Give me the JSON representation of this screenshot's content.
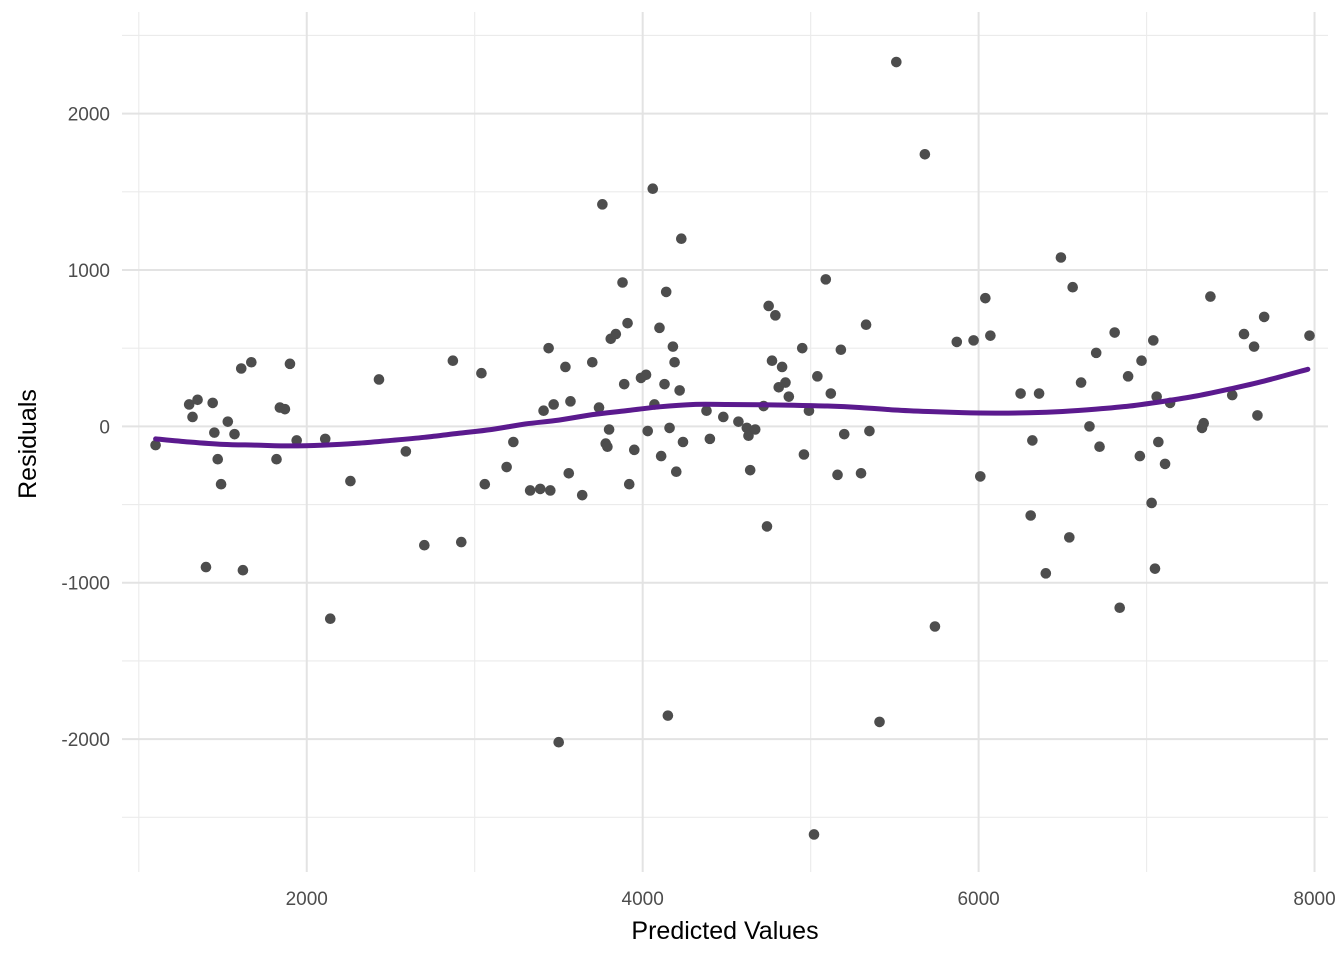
{
  "chart_data": {
    "type": "scatter",
    "title": "",
    "xlabel": "Predicted Values",
    "ylabel": "Residuals",
    "xlim": [
      900,
      8080
    ],
    "ylim": [
      -2850,
      2650
    ],
    "x_ticks": [
      2000,
      4000,
      6000,
      8000
    ],
    "x_tick_labels": [
      "2000",
      "4000",
      "6000",
      "8000"
    ],
    "y_ticks": [
      -2000,
      -1000,
      0,
      1000,
      2000
    ],
    "y_tick_labels": [
      "-2000",
      "-1000",
      "0",
      "1000",
      "2000"
    ],
    "grid": true,
    "legend": "none",
    "point_color": "#4d4d4d",
    "smooth_color": "#5b1a8e",
    "points": [
      [
        1100,
        -120
      ],
      [
        1300,
        140
      ],
      [
        1320,
        60
      ],
      [
        1350,
        170
      ],
      [
        1400,
        -900
      ],
      [
        1440,
        150
      ],
      [
        1450,
        -40
      ],
      [
        1470,
        -210
      ],
      [
        1490,
        -370
      ],
      [
        1530,
        30
      ],
      [
        1570,
        -50
      ],
      [
        1610,
        370
      ],
      [
        1620,
        -920
      ],
      [
        1670,
        410
      ],
      [
        1820,
        -210
      ],
      [
        1840,
        120
      ],
      [
        1870,
        110
      ],
      [
        1900,
        400
      ],
      [
        1940,
        -90
      ],
      [
        2110,
        -80
      ],
      [
        2140,
        -1230
      ],
      [
        2260,
        -350
      ],
      [
        2430,
        300
      ],
      [
        2590,
        -160
      ],
      [
        2700,
        -760
      ],
      [
        2870,
        420
      ],
      [
        2920,
        -740
      ],
      [
        3040,
        340
      ],
      [
        3060,
        -370
      ],
      [
        3190,
        -260
      ],
      [
        3230,
        -100
      ],
      [
        3330,
        -410
      ],
      [
        3390,
        -400
      ],
      [
        3410,
        100
      ],
      [
        3440,
        500
      ],
      [
        3450,
        -410
      ],
      [
        3470,
        140
      ],
      [
        3500,
        -2020
      ],
      [
        3540,
        380
      ],
      [
        3560,
        -300
      ],
      [
        3570,
        160
      ],
      [
        3640,
        -440
      ],
      [
        3700,
        410
      ],
      [
        3740,
        120
      ],
      [
        3760,
        1420
      ],
      [
        3780,
        -110
      ],
      [
        3790,
        -130
      ],
      [
        3800,
        -20
      ],
      [
        3810,
        560
      ],
      [
        3840,
        590
      ],
      [
        3880,
        920
      ],
      [
        3890,
        270
      ],
      [
        3910,
        660
      ],
      [
        3920,
        -370
      ],
      [
        3950,
        -150
      ],
      [
        3990,
        310
      ],
      [
        4020,
        330
      ],
      [
        4030,
        -30
      ],
      [
        4060,
        1520
      ],
      [
        4070,
        140
      ],
      [
        4100,
        630
      ],
      [
        4110,
        -190
      ],
      [
        4130,
        270
      ],
      [
        4140,
        860
      ],
      [
        4150,
        -1850
      ],
      [
        4160,
        -10
      ],
      [
        4180,
        510
      ],
      [
        4190,
        410
      ],
      [
        4200,
        -290
      ],
      [
        4220,
        230
      ],
      [
        4230,
        1200
      ],
      [
        4240,
        -100
      ],
      [
        4380,
        100
      ],
      [
        4400,
        -80
      ],
      [
        4480,
        60
      ],
      [
        4570,
        30
      ],
      [
        4620,
        -10
      ],
      [
        4630,
        -60
      ],
      [
        4640,
        -280
      ],
      [
        4670,
        -20
      ],
      [
        4720,
        130
      ],
      [
        4740,
        -640
      ],
      [
        4750,
        770
      ],
      [
        4770,
        420
      ],
      [
        4790,
        710
      ],
      [
        4810,
        250
      ],
      [
        4830,
        380
      ],
      [
        4850,
        280
      ],
      [
        4870,
        190
      ],
      [
        4950,
        500
      ],
      [
        4960,
        -180
      ],
      [
        4990,
        100
      ],
      [
        5020,
        -2610
      ],
      [
        5040,
        320
      ],
      [
        5090,
        940
      ],
      [
        5120,
        210
      ],
      [
        5160,
        -310
      ],
      [
        5180,
        490
      ],
      [
        5200,
        -50
      ],
      [
        5300,
        -300
      ],
      [
        5330,
        650
      ],
      [
        5350,
        -30
      ],
      [
        5410,
        -1890
      ],
      [
        5510,
        2330
      ],
      [
        5680,
        1740
      ],
      [
        5740,
        -1280
      ],
      [
        5870,
        540
      ],
      [
        5970,
        550
      ],
      [
        6010,
        -320
      ],
      [
        6040,
        820
      ],
      [
        6070,
        580
      ],
      [
        6250,
        210
      ],
      [
        6310,
        -570
      ],
      [
        6320,
        -90
      ],
      [
        6360,
        210
      ],
      [
        6400,
        -940
      ],
      [
        6490,
        1080
      ],
      [
        6540,
        -710
      ],
      [
        6560,
        890
      ],
      [
        6610,
        280
      ],
      [
        6660,
        0
      ],
      [
        6700,
        470
      ],
      [
        6720,
        -130
      ],
      [
        6810,
        600
      ],
      [
        6840,
        -1160
      ],
      [
        6890,
        320
      ],
      [
        6960,
        -190
      ],
      [
        6970,
        420
      ],
      [
        7030,
        -490
      ],
      [
        7040,
        550
      ],
      [
        7050,
        -910
      ],
      [
        7060,
        190
      ],
      [
        7070,
        -100
      ],
      [
        7110,
        -240
      ],
      [
        7140,
        150
      ],
      [
        7330,
        -10
      ],
      [
        7340,
        20
      ],
      [
        7380,
        830
      ],
      [
        7510,
        200
      ],
      [
        7580,
        590
      ],
      [
        7640,
        510
      ],
      [
        7660,
        70
      ],
      [
        7700,
        700
      ],
      [
        7970,
        580
      ]
    ],
    "smooth": [
      [
        1100,
        -80
      ],
      [
        1300,
        -100
      ],
      [
        1500,
        -115
      ],
      [
        1700,
        -120
      ],
      [
        1900,
        -125
      ],
      [
        2100,
        -120
      ],
      [
        2300,
        -108
      ],
      [
        2500,
        -90
      ],
      [
        2700,
        -70
      ],
      [
        2900,
        -45
      ],
      [
        3100,
        -20
      ],
      [
        3300,
        15
      ],
      [
        3500,
        40
      ],
      [
        3700,
        75
      ],
      [
        3900,
        100
      ],
      [
        4100,
        125
      ],
      [
        4300,
        140
      ],
      [
        4500,
        140
      ],
      [
        4700,
        138
      ],
      [
        4900,
        135
      ],
      [
        5100,
        130
      ],
      [
        5300,
        120
      ],
      [
        5500,
        105
      ],
      [
        5700,
        95
      ],
      [
        5900,
        88
      ],
      [
        6100,
        85
      ],
      [
        6300,
        87
      ],
      [
        6500,
        95
      ],
      [
        6700,
        110
      ],
      [
        6900,
        130
      ],
      [
        7100,
        160
      ],
      [
        7300,
        195
      ],
      [
        7500,
        240
      ],
      [
        7700,
        290
      ],
      [
        7960,
        365
      ]
    ]
  }
}
